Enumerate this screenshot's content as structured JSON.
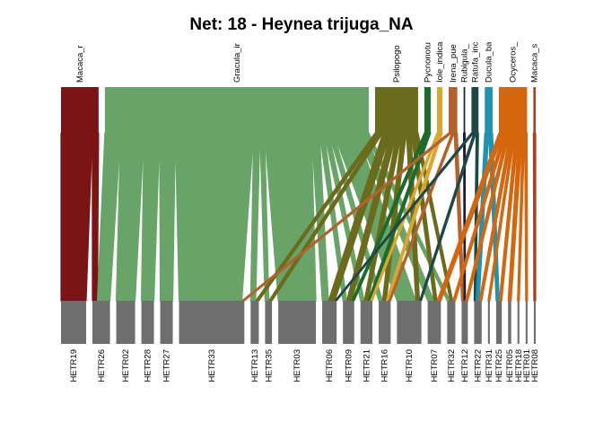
{
  "chart_data": {
    "type": "bipartite",
    "title": "Net: 18 - Heynea trijuga_NA",
    "higher_level": [
      {
        "label": "Macaca_r",
        "color": "#7a1416"
      },
      {
        "label": "Gracula_ir",
        "color": "#68a468"
      },
      {
        "label": "Psilopogo",
        "color": "#6b6b1c"
      },
      {
        "label": "Pycnonotu",
        "color": "#1d6b2c"
      },
      {
        "label": "Iole_indica",
        "color": "#d9a62e"
      },
      {
        "label": "Irena_pue",
        "color": "#b5612a"
      },
      {
        "label": "Rubigula_",
        "color": "#1c1c3c"
      },
      {
        "label": "Ratufa_inc",
        "color": "#1e4848"
      },
      {
        "label": "Ducula_ba",
        "color": "#1f93b0"
      },
      {
        "label": "Ocyceros_",
        "color": "#d4660e"
      },
      {
        "label": "Macaca_s",
        "color": "#a8431f"
      }
    ],
    "lower_level": [
      "HETR19",
      "HETR26",
      "HETR02",
      "HETR28",
      "HETR27",
      "HETR33",
      "HETR13",
      "HETR35",
      "HETR03",
      "HETR06",
      "HETR09",
      "HETR21",
      "HETR16",
      "HETR10",
      "HETR07",
      "HETR32",
      "HETR12",
      "HETR22",
      "HETR31",
      "HETR25",
      "HETR05",
      "HETR18",
      "HETR01",
      "HETR08"
    ],
    "lower_box_color": "#6e6e6e",
    "interactions": [
      [
        "Macaca_r",
        "HETR19",
        4.0
      ],
      [
        "Macaca_r",
        "HETR26",
        0.8
      ],
      [
        "Gracula_ir",
        "HETR26",
        2.0
      ],
      [
        "Gracula_ir",
        "HETR02",
        3.0
      ],
      [
        "Gracula_ir",
        "HETR28",
        2.0
      ],
      [
        "Gracula_ir",
        "HETR27",
        2.0
      ],
      [
        "Gracula_ir",
        "HETR33",
        10.0
      ],
      [
        "Gracula_ir",
        "HETR13",
        0.8
      ],
      [
        "Gracula_ir",
        "HETR35",
        0.6
      ],
      [
        "Gracula_ir",
        "HETR03",
        6.0
      ],
      [
        "Gracula_ir",
        "HETR06",
        1.0
      ],
      [
        "Gracula_ir",
        "HETR09",
        0.6
      ],
      [
        "Gracula_ir",
        "HETR21",
        0.6
      ],
      [
        "Gracula_ir",
        "HETR16",
        0.6
      ],
      [
        "Gracula_ir",
        "HETR10",
        3.0
      ],
      [
        "Gracula_ir",
        "HETR07",
        1.0
      ],
      [
        "Gracula_ir",
        "HETR32",
        0.5
      ],
      [
        "Psilopogo",
        "HETR13",
        0.5
      ],
      [
        "Psilopogo",
        "HETR35",
        0.5
      ],
      [
        "Psilopogo",
        "HETR06",
        1.0
      ],
      [
        "Psilopogo",
        "HETR09",
        0.8
      ],
      [
        "Psilopogo",
        "HETR21",
        0.6
      ],
      [
        "Psilopogo",
        "HETR16",
        0.6
      ],
      [
        "Psilopogo",
        "HETR10",
        0.6
      ],
      [
        "Psilopogo",
        "HETR07",
        0.5
      ],
      [
        "Psilopogo",
        "HETR32",
        0.4
      ],
      [
        "Pycnonotu",
        "HETR09",
        0.4
      ],
      [
        "Pycnonotu",
        "HETR21",
        0.4
      ],
      [
        "Iole_indica",
        "HETR16",
        0.4
      ],
      [
        "Iole_indica",
        "HETR21",
        0.3
      ],
      [
        "Irena_pue",
        "HETR33",
        0.4
      ],
      [
        "Irena_pue",
        "HETR12",
        0.4
      ],
      [
        "Irena_pue",
        "HETR16",
        0.3
      ],
      [
        "Rubigula_",
        "HETR12",
        0.2
      ],
      [
        "Ratufa_inc",
        "HETR06",
        0.3
      ],
      [
        "Ratufa_inc",
        "HETR10",
        0.3
      ],
      [
        "Ratufa_inc",
        "HETR22",
        0.3
      ],
      [
        "Ducula_ba",
        "HETR22",
        0.5
      ],
      [
        "Ducula_ba",
        "HETR25",
        0.5
      ],
      [
        "Ocyceros_",
        "HETR07",
        0.6
      ],
      [
        "Ocyceros_",
        "HETR32",
        0.4
      ],
      [
        "Ocyceros_",
        "HETR12",
        0.4
      ],
      [
        "Ocyceros_",
        "HETR22",
        0.4
      ],
      [
        "Ocyceros_",
        "HETR31",
        0.3
      ],
      [
        "Ocyceros_",
        "HETR25",
        0.4
      ],
      [
        "Ocyceros_",
        "HETR05",
        0.5
      ],
      [
        "Ocyceros_",
        "HETR18",
        0.3
      ],
      [
        "Ocyceros_",
        "HETR01",
        0.3
      ],
      [
        "Macaca_s",
        "HETR08",
        0.3
      ]
    ]
  }
}
